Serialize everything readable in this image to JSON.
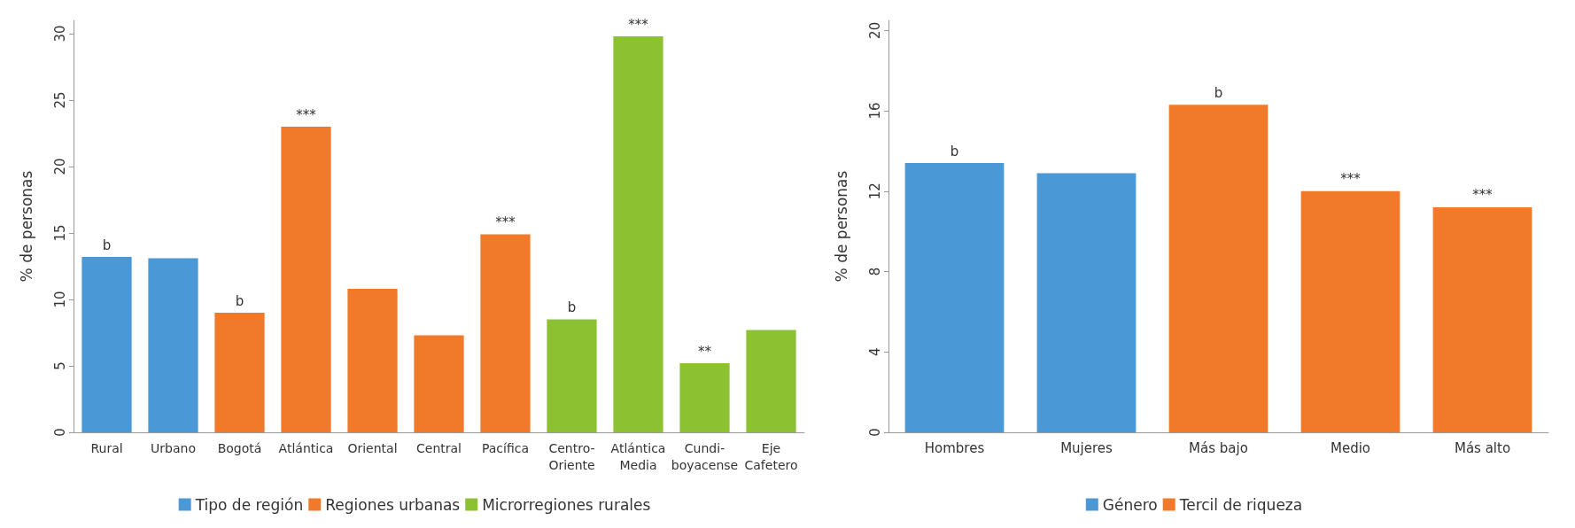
{
  "chart_data": [
    {
      "type": "bar",
      "ylabel": "% de personas",
      "categories": [
        "Rural",
        "Urbano",
        "Bogotá",
        "Atlántica",
        "Oriental",
        "Central",
        "Pacífica",
        "Centro-\nOriente",
        "Atlántica\nMedia",
        "Cundi-\nboyacense",
        "Eje\nCafetero"
      ],
      "ylim": [
        0,
        31
      ],
      "yticks": [
        0,
        5,
        10,
        15,
        20,
        25,
        30
      ],
      "grid": false,
      "legend": "bottom",
      "series": [
        {
          "name": "Tipo de región",
          "color": "#4a98d6",
          "values": [
            13.2,
            13.1,
            null,
            null,
            null,
            null,
            null,
            null,
            null,
            null,
            null
          ]
        },
        {
          "name": "Regiones urbanas",
          "color": "#f07a2a",
          "values": [
            null,
            null,
            9.0,
            23.0,
            10.8,
            7.3,
            14.9,
            null,
            null,
            null,
            null
          ]
        },
        {
          "name": "Microrregiones rurales",
          "color": "#8cc232",
          "values": [
            null,
            null,
            null,
            null,
            null,
            null,
            null,
            8.5,
            29.8,
            5.2,
            7.7
          ]
        }
      ],
      "annotations": [
        {
          "text": "b",
          "x": "Rural",
          "y": 13.2
        },
        {
          "text": "b",
          "x": "Bogotá",
          "y": 9.0
        },
        {
          "text": "***",
          "x": "Atlántica",
          "y": 23.0
        },
        {
          "text": "***",
          "x": "Pacífica",
          "y": 14.9
        },
        {
          "text": "b",
          "x": "Centro-\nOriente",
          "y": 8.5
        },
        {
          "text": "***",
          "x": "Atlántica\nMedia",
          "y": 29.8
        },
        {
          "text": "**",
          "x": "Cundi-\nboyacense",
          "y": 5.2
        }
      ]
    },
    {
      "type": "bar",
      "ylabel": "% de personas",
      "categories": [
        "Hombres",
        "Mujeres",
        "Más bajo",
        "Medio",
        "Más alto"
      ],
      "ylim": [
        0,
        20.5
      ],
      "yticks": [
        0,
        4,
        8,
        12,
        16,
        20
      ],
      "grid": false,
      "legend": "bottom",
      "series": [
        {
          "name": "Género",
          "color": "#4a98d6",
          "values": [
            13.4,
            12.9,
            null,
            null,
            null
          ]
        },
        {
          "name": "Tercil de riqueza",
          "color": "#f07a2a",
          "values": [
            null,
            null,
            16.3,
            12.0,
            11.2
          ]
        }
      ],
      "annotations": [
        {
          "text": "b",
          "x": "Hombres",
          "y": 13.4
        },
        {
          "text": "b",
          "x": "Más bajo",
          "y": 16.3
        },
        {
          "text": "***",
          "x": "Medio",
          "y": 12.0
        },
        {
          "text": "***",
          "x": "Más alto",
          "y": 11.2
        }
      ]
    }
  ]
}
